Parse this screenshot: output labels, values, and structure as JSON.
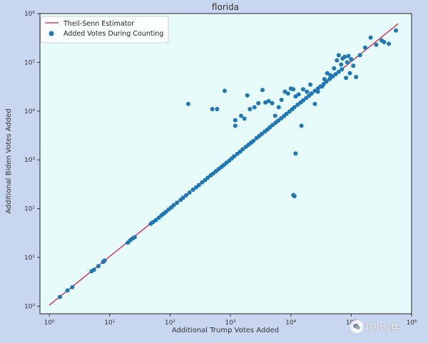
{
  "colors": {
    "figure_bg": "#c9d6f0",
    "axes_bg": "#e8fbfb",
    "fit_line": "#cc4466",
    "points": "#1f77b4"
  },
  "watermark": {
    "text": "IT小伙伴",
    "icon": "wechat-logo-icon"
  },
  "chart_data": {
    "type": "scatter",
    "title": "florida",
    "xlabel": "Additional Trump Votes Added",
    "ylabel": "Additional Biden Votes Added",
    "xscale": "log",
    "yscale": "log",
    "xlim": [
      0.7,
      1000000
    ],
    "ylim": [
      0.7,
      1000000
    ],
    "xticks": [
      1,
      10,
      100,
      1000,
      10000,
      100000,
      1000000
    ],
    "xtick_labels": [
      "10⁰",
      "10¹",
      "10²",
      "10³",
      "10⁴",
      "10⁵",
      "10⁶"
    ],
    "yticks": [
      1,
      10,
      100,
      1000,
      10000,
      100000,
      1000000
    ],
    "ytick_labels": [
      "10⁰",
      "10¹",
      "10²",
      "10³",
      "10⁴",
      "10⁵",
      "10⁶"
    ],
    "grid": false,
    "legend_position": "upper-left",
    "fit_line": {
      "name": "Theil-Senn Estimator",
      "x": [
        1,
        600000
      ],
      "y": [
        1.05,
        620000
      ]
    },
    "series": [
      {
        "name": "Added Votes During Counting",
        "points": [
          [
            1.5,
            1.55
          ],
          [
            2,
            2.1
          ],
          [
            2.4,
            2.45
          ],
          [
            5,
            5.2
          ],
          [
            5.5,
            5.6
          ],
          [
            6.5,
            6.6
          ],
          [
            7.8,
            8.1
          ],
          [
            8.2,
            8.6
          ],
          [
            20,
            20
          ],
          [
            22,
            22.5
          ],
          [
            24,
            24.5
          ],
          [
            26,
            26
          ],
          [
            48,
            49
          ],
          [
            52,
            53
          ],
          [
            58,
            58
          ],
          [
            65,
            65
          ],
          [
            72,
            73
          ],
          [
            78,
            79
          ],
          [
            85,
            86
          ],
          [
            95,
            96
          ],
          [
            105,
            106
          ],
          [
            115,
            118
          ],
          [
            130,
            132
          ],
          [
            150,
            152
          ],
          [
            165,
            168
          ],
          [
            185,
            188
          ],
          [
            210,
            214
          ],
          [
            240,
            245
          ],
          [
            270,
            273
          ],
          [
            300,
            305
          ],
          [
            340,
            345
          ],
          [
            380,
            385
          ],
          [
            420,
            430
          ],
          [
            470,
            480
          ],
          [
            520,
            530
          ],
          [
            580,
            590
          ],
          [
            640,
            650
          ],
          [
            710,
            720
          ],
          [
            780,
            790
          ],
          [
            860,
            870
          ],
          [
            950,
            960
          ],
          [
            1050,
            1070
          ],
          [
            1150,
            1180
          ],
          [
            1300,
            1330
          ],
          [
            1450,
            1480
          ],
          [
            1600,
            1650
          ],
          [
            1800,
            1850
          ],
          [
            2000,
            2050
          ],
          [
            2200,
            2250
          ],
          [
            2400,
            2450
          ],
          [
            2700,
            2780
          ],
          [
            3000,
            3080
          ],
          [
            3300,
            3400
          ],
          [
            3700,
            3800
          ],
          [
            4100,
            4200
          ],
          [
            4500,
            4650
          ],
          [
            5000,
            5200
          ],
          [
            5600,
            5800
          ],
          [
            6200,
            6400
          ],
          [
            6900,
            7100
          ],
          [
            7700,
            7900
          ],
          [
            8500,
            8800
          ],
          [
            9500,
            9800
          ],
          [
            10500,
            10900
          ],
          [
            11500,
            12000
          ],
          [
            13000,
            13500
          ],
          [
            14500,
            15000
          ],
          [
            16000,
            16600
          ],
          [
            18000,
            18600
          ],
          [
            20000,
            20700
          ],
          [
            22000,
            23000
          ],
          [
            25000,
            26000
          ],
          [
            28000,
            29000
          ],
          [
            31000,
            32000
          ],
          [
            35000,
            36000
          ],
          [
            39000,
            40500
          ],
          [
            44000,
            45500
          ],
          [
            49000,
            51000
          ],
          [
            55000,
            57000
          ],
          [
            62000,
            64000
          ],
          [
            70000,
            72000
          ],
          [
            200,
            14000
          ],
          [
            500,
            11000
          ],
          [
            600,
            11000
          ],
          [
            800,
            26000
          ],
          [
            1200,
            6500
          ],
          [
            1200,
            5000
          ],
          [
            1500,
            8000
          ],
          [
            1700,
            7000
          ],
          [
            1900,
            21000
          ],
          [
            2100,
            11000
          ],
          [
            2500,
            12000
          ],
          [
            2900,
            14500
          ],
          [
            3400,
            27000
          ],
          [
            3800,
            15000
          ],
          [
            4300,
            16000
          ],
          [
            4900,
            14500
          ],
          [
            5500,
            8000
          ],
          [
            6300,
            12000
          ],
          [
            7000,
            17000
          ],
          [
            8000,
            25000
          ],
          [
            9000,
            23000
          ],
          [
            10000,
            29000
          ],
          [
            11000,
            28000
          ],
          [
            12000,
            20000
          ],
          [
            13500,
            22000
          ],
          [
            15000,
            5000
          ],
          [
            16000,
            28000
          ],
          [
            18500,
            25000
          ],
          [
            21000,
            35000
          ],
          [
            25000,
            14000
          ],
          [
            28000,
            25000
          ],
          [
            33000,
            32000
          ],
          [
            36000,
            45000
          ],
          [
            40000,
            60000
          ],
          [
            45000,
            55000
          ],
          [
            52000,
            75000
          ],
          [
            58000,
            110000
          ],
          [
            62000,
            140000
          ],
          [
            68000,
            90000
          ],
          [
            72000,
            120000
          ],
          [
            78000,
            130000
          ],
          [
            82000,
            48000
          ],
          [
            86000,
            100000
          ],
          [
            90000,
            135000
          ],
          [
            95000,
            60000
          ],
          [
            100000,
            115000
          ],
          [
            108000,
            85000
          ],
          [
            120000,
            50000
          ],
          [
            140000,
            140000
          ],
          [
            170000,
            200000
          ],
          [
            210000,
            320000
          ],
          [
            260000,
            230000
          ],
          [
            320000,
            280000
          ],
          [
            350000,
            260000
          ],
          [
            420000,
            240000
          ],
          [
            550000,
            450000
          ],
          [
            12000,
            1350
          ],
          [
            11000,
            190
          ],
          [
            11500,
            180
          ]
        ]
      }
    ]
  }
}
